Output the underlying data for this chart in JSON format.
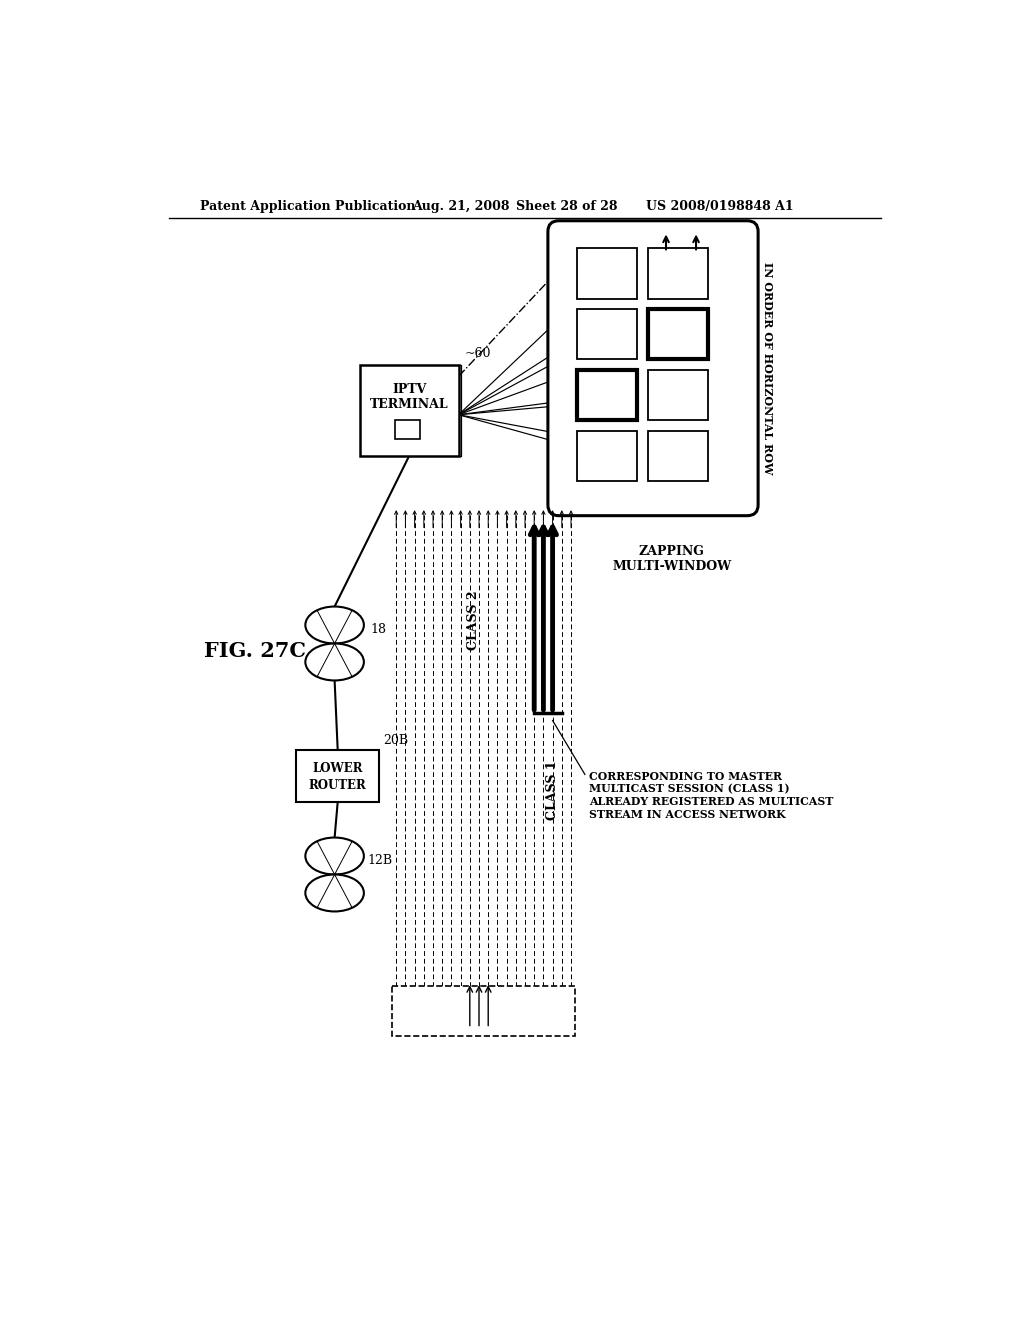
{
  "bg_color": "#ffffff",
  "header_text": "Patent Application Publication",
  "header_date": "Aug. 21, 2008",
  "header_sheet": "Sheet 28 of 28",
  "header_patent": "US 2008/0198848 A1",
  "fig_label": "FIG. 27C"
}
